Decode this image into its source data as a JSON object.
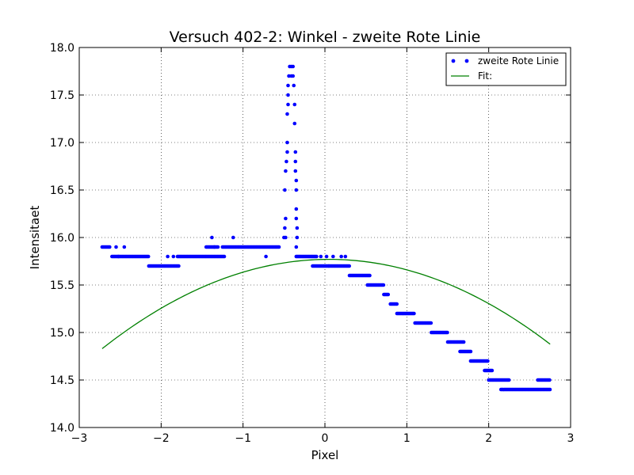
{
  "chart_data": {
    "type": "scatter",
    "title": "Versuch 402-2: Winkel - zweite Rote Linie",
    "xlabel": "Pixel",
    "ylabel": "Intensitaet",
    "xlim": [
      -3,
      3
    ],
    "ylim": [
      14.0,
      18.0
    ],
    "x_ticks": [
      "−3",
      "−2",
      "−1",
      "0",
      "1",
      "2",
      "3"
    ],
    "y_ticks": [
      "14.0",
      "14.5",
      "15.0",
      "15.5",
      "16.0",
      "16.5",
      "17.0",
      "17.5",
      "18.0"
    ],
    "grid": true,
    "legend_position": "top-right",
    "colors": {
      "scatter": "#0000ff",
      "fit": "#008000",
      "axes": "#000000"
    },
    "series": [
      {
        "name": "zweite Rote Linie",
        "kind": "scatter",
        "color": "#0000ff",
        "segments": [
          [
            -2.72,
            -2.62,
            15.9
          ],
          [
            -2.6,
            -2.52,
            15.8
          ],
          [
            -2.52,
            -2.15,
            15.8
          ],
          [
            -2.15,
            -1.78,
            15.7
          ],
          [
            -1.8,
            -1.45,
            15.8
          ],
          [
            -1.45,
            -1.3,
            15.9
          ],
          [
            -1.45,
            -1.22,
            15.8
          ],
          [
            -1.25,
            -0.55,
            15.9
          ],
          [
            -0.35,
            -0.1,
            15.8
          ],
          [
            -0.15,
            0.05,
            15.7
          ],
          [
            0.05,
            0.3,
            15.7
          ],
          [
            0.3,
            0.55,
            15.6
          ],
          [
            0.52,
            0.72,
            15.5
          ],
          [
            0.72,
            0.78,
            15.4
          ],
          [
            0.8,
            0.88,
            15.3
          ],
          [
            0.88,
            1.1,
            15.2
          ],
          [
            1.1,
            1.3,
            15.1
          ],
          [
            1.3,
            1.5,
            15.0
          ],
          [
            1.5,
            1.7,
            14.9
          ],
          [
            1.65,
            1.78,
            14.8
          ],
          [
            1.78,
            2.0,
            14.7
          ],
          [
            1.95,
            2.05,
            14.6
          ],
          [
            2.0,
            2.25,
            14.5
          ],
          [
            2.15,
            2.75,
            14.4
          ],
          [
            2.6,
            2.75,
            14.5
          ]
        ],
        "points": [
          [
            -2.55,
            15.9
          ],
          [
            -2.45,
            15.9
          ],
          [
            -1.92,
            15.8
          ],
          [
            -1.85,
            15.8
          ],
          [
            -1.38,
            16.0
          ],
          [
            -1.12,
            16.0
          ],
          [
            -1.35,
            15.9
          ],
          [
            -0.72,
            15.8
          ],
          [
            -0.5,
            16.0
          ],
          [
            -0.48,
            16.0
          ],
          [
            -0.49,
            16.1
          ],
          [
            -0.48,
            16.2
          ],
          [
            -0.49,
            16.5
          ],
          [
            -0.48,
            16.7
          ],
          [
            -0.47,
            16.8
          ],
          [
            -0.46,
            16.9
          ],
          [
            -0.46,
            17.0
          ],
          [
            -0.46,
            17.3
          ],
          [
            -0.45,
            17.4
          ],
          [
            -0.45,
            17.5
          ],
          [
            -0.45,
            17.6
          ],
          [
            -0.44,
            17.7
          ],
          [
            -0.43,
            17.8
          ],
          [
            -0.41,
            17.8
          ],
          [
            -0.39,
            17.8
          ],
          [
            -0.41,
            17.7
          ],
          [
            -0.39,
            17.7
          ],
          [
            -0.38,
            17.6
          ],
          [
            -0.37,
            17.4
          ],
          [
            -0.37,
            17.2
          ],
          [
            -0.36,
            16.9
          ],
          [
            -0.36,
            16.8
          ],
          [
            -0.36,
            16.7
          ],
          [
            -0.35,
            16.6
          ],
          [
            -0.35,
            16.5
          ],
          [
            -0.35,
            16.3
          ],
          [
            -0.35,
            16.2
          ],
          [
            -0.34,
            16.1
          ],
          [
            -0.34,
            16.0
          ],
          [
            -0.35,
            15.9
          ],
          [
            0.02,
            15.8
          ],
          [
            0.1,
            15.8
          ],
          [
            0.2,
            15.8
          ],
          [
            0.25,
            15.8
          ],
          [
            -0.05,
            15.8
          ]
        ]
      },
      {
        "name": "Fit:",
        "kind": "line",
        "color": "#008000",
        "curve": {
          "form": "parabola",
          "vertex_x": 0.05,
          "vertex_y": 15.77,
          "a": -0.1225,
          "x_start": -2.72,
          "x_end": 2.75
        }
      }
    ]
  }
}
